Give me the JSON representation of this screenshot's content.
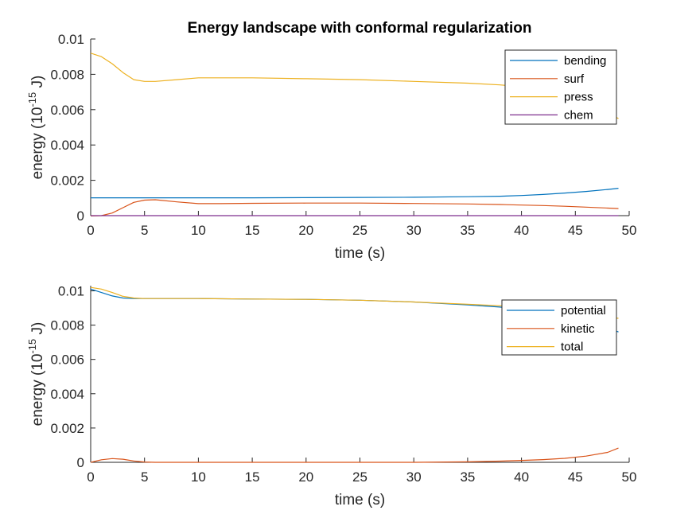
{
  "figure": {
    "title": "Energy landscape with conformal regularization"
  },
  "chart_data": [
    {
      "type": "line",
      "title": "Energy landscape with conformal regularization",
      "xlabel": "time (s)",
      "ylabel_main": "energy (10",
      "ylabel_sup": "-15",
      "ylabel_tail": " J)",
      "xlim": [
        0,
        50
      ],
      "ylim": [
        0,
        0.01
      ],
      "xticks": [
        0,
        5,
        10,
        15,
        20,
        25,
        30,
        35,
        40,
        45,
        50
      ],
      "yticks": [
        0,
        0.002,
        0.004,
        0.006,
        0.008,
        0.01
      ],
      "ytick_labels": [
        "0",
        "0.002",
        "0.004",
        "0.006",
        "0.008",
        "0.01"
      ],
      "legend_position": "top-right",
      "x": [
        0,
        1,
        2,
        3,
        4,
        5,
        6,
        8,
        10,
        12,
        15,
        20,
        25,
        30,
        35,
        38,
        40,
        42,
        44,
        46,
        48,
        49
      ],
      "series": [
        {
          "name": "bending",
          "color": "#0072BD",
          "values": [
            0.00101,
            0.00101,
            0.00101,
            0.00101,
            0.00101,
            0.00101,
            0.00101,
            0.00101,
            0.00101,
            0.00101,
            0.00101,
            0.00102,
            0.00103,
            0.00104,
            0.00107,
            0.0011,
            0.00114,
            0.0012,
            0.00128,
            0.00137,
            0.00148,
            0.00155
          ]
        },
        {
          "name": "surf",
          "color": "#D95319",
          "values": [
            -2e-05,
            0.0,
            0.00015,
            0.00045,
            0.00075,
            0.00088,
            0.0009,
            0.00078,
            0.00068,
            0.00068,
            0.0007,
            0.00071,
            0.00071,
            0.00069,
            0.00066,
            0.00063,
            0.0006,
            0.00057,
            0.00053,
            0.00048,
            0.00043,
            0.0004
          ]
        },
        {
          "name": "press",
          "color": "#EDB120",
          "values": [
            0.0092,
            0.009,
            0.0086,
            0.0081,
            0.0077,
            0.0076,
            0.0076,
            0.0077,
            0.0078,
            0.0078,
            0.0078,
            0.00775,
            0.0077,
            0.0076,
            0.0075,
            0.0074,
            0.0073,
            0.007,
            0.0067,
            0.0063,
            0.0058,
            0.0055
          ]
        },
        {
          "name": "chem",
          "color": "#7E2F8E",
          "values": [
            0,
            0,
            0,
            0,
            0,
            0,
            0,
            0,
            0,
            0,
            0,
            0,
            0,
            0,
            0,
            0,
            0,
            0,
            0,
            0,
            0,
            0
          ]
        }
      ]
    },
    {
      "type": "line",
      "title": "",
      "xlabel": "time (s)",
      "ylabel_main": "energy (10",
      "ylabel_sup": "-15",
      "ylabel_tail": " J)",
      "xlim": [
        0,
        50
      ],
      "ylim": [
        0,
        0.0103
      ],
      "xticks": [
        0,
        5,
        10,
        15,
        20,
        25,
        30,
        35,
        40,
        45,
        50
      ],
      "yticks": [
        0,
        0.002,
        0.004,
        0.006,
        0.008,
        0.01
      ],
      "ytick_labels": [
        "0",
        "0.002",
        "0.004",
        "0.006",
        "0.008",
        "0.01"
      ],
      "legend_position": "top-right",
      "x": [
        0,
        1,
        2,
        3,
        4,
        5,
        6,
        8,
        10,
        15,
        20,
        25,
        30,
        35,
        38,
        40,
        42,
        44,
        46,
        48,
        49
      ],
      "series": [
        {
          "name": "potential",
          "color": "#0072BD",
          "values": [
            0.0101,
            0.0099,
            0.0097,
            0.00958,
            0.00955,
            0.00955,
            0.00955,
            0.00955,
            0.00955,
            0.00952,
            0.0095,
            0.00945,
            0.00935,
            0.00918,
            0.00905,
            0.00893,
            0.00875,
            0.00852,
            0.00822,
            0.00785,
            0.0076
          ]
        },
        {
          "name": "kinetic",
          "color": "#D95319",
          "values": [
            0,
            0.00015,
            0.00022,
            0.00018,
            8e-05,
            2e-05,
            0,
            0,
            0,
            0,
            0,
            0,
            0,
            3e-05,
            7e-05,
            0.00011,
            0.00016,
            0.00023,
            0.00036,
            0.00058,
            0.00083
          ]
        },
        {
          "name": "total",
          "color": "#EDB120",
          "values": [
            0.0102,
            0.0101,
            0.0099,
            0.00968,
            0.00958,
            0.00955,
            0.00955,
            0.00955,
            0.00955,
            0.00952,
            0.0095,
            0.00945,
            0.00935,
            0.00922,
            0.00913,
            0.00906,
            0.00894,
            0.00878,
            0.0086,
            0.00845,
            0.0084
          ]
        }
      ]
    }
  ]
}
